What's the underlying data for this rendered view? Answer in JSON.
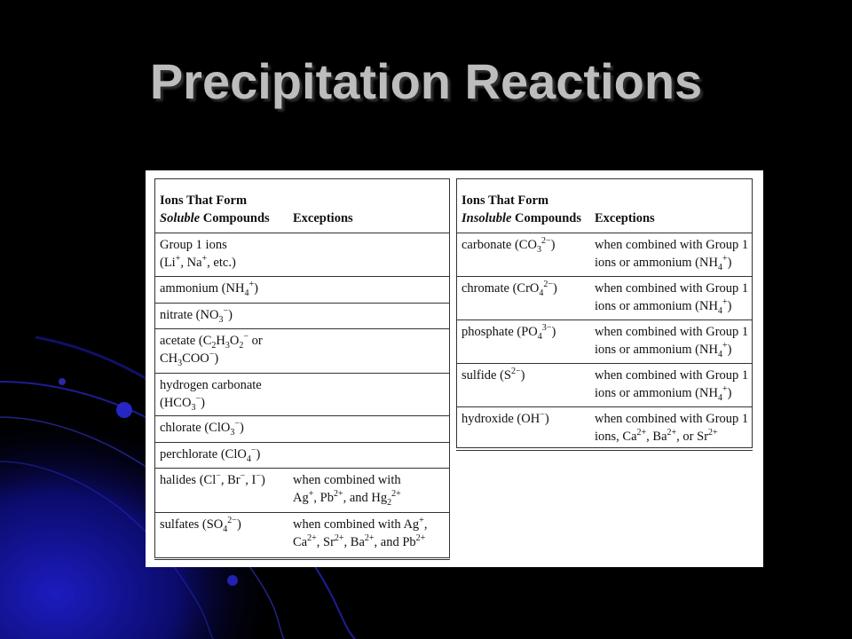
{
  "slide": {
    "title": "Precipitation Reactions"
  },
  "soluble_table": {
    "header": {
      "col1_line1": "Ions That Form",
      "col1_italic": "Soluble",
      "col1_rest": " Compounds",
      "col2": "Exceptions"
    },
    "rows": [
      {
        "ion": "Group 1 ions<br>(Li<sup>+</sup>, Na<sup>+</sup>, etc.)",
        "exception": ""
      },
      {
        "ion": "ammonium (NH<sub>4</sub><sup>+</sup>)",
        "exception": ""
      },
      {
        "ion": "nitrate (NO<sub>3</sub><sup>−</sup>)",
        "exception": ""
      },
      {
        "ion": "acetate (C<sub>2</sub>H<sub>3</sub>O<sub>2</sub><sup>−</sup> or<br>CH<sub>3</sub>COO<sup>−</sup>)",
        "exception": ""
      },
      {
        "ion": "hydrogen carbonate<br>(HCO<sub>3</sub><sup>−</sup>)",
        "exception": ""
      },
      {
        "ion": "chlorate (ClO<sub>3</sub><sup>−</sup>)",
        "exception": ""
      },
      {
        "ion": "perchlorate (ClO<sub>4</sub><sup>−</sup>)",
        "exception": ""
      },
      {
        "ion": "halides (Cl<sup>−</sup>, Br<sup>−</sup>, I<sup>−</sup>)",
        "exception": "when combined with<br>Ag<sup>+</sup>, Pb<sup>2+</sup>, and Hg<sub>2</sub><sup>2+</sup>"
      },
      {
        "ion": "sulfates (SO<sub>4</sub><sup>2−</sup>)",
        "exception": "when combined with Ag<sup>+</sup>,<br>Ca<sup>2+</sup>, Sr<sup>2+</sup>, Ba<sup>2+</sup>, and Pb<sup>2+</sup>"
      }
    ]
  },
  "insoluble_table": {
    "header": {
      "col1_line1": "Ions That Form",
      "col1_italic": "Insoluble",
      "col1_rest": " Compounds",
      "col2": "Exceptions"
    },
    "rows": [
      {
        "ion": "carbonate (CO<sub>3</sub><sup>2−</sup>)",
        "exception": "when combined with Group 1<br>ions or ammonium (NH<sub>4</sub><sup>+</sup>)"
      },
      {
        "ion": "chromate (CrO<sub>4</sub><sup>2−</sup>)",
        "exception": "when combined with Group 1<br>ions or ammonium (NH<sub>4</sub><sup>+</sup>)"
      },
      {
        "ion": "phosphate (PO<sub>4</sub><sup>3−</sup>)",
        "exception": "when combined with Group 1<br>ions or ammonium (NH<sub>4</sub><sup>+</sup>)"
      },
      {
        "ion": "sulfide (S<sup>2−</sup>)",
        "exception": "when combined with Group 1<br>ions or ammonium (NH<sub>4</sub><sup>+</sup>)"
      },
      {
        "ion": "hydroxide (OH<sup>−</sup>)",
        "exception": "when combined with Group 1<br>ions, Ca<sup>2+</sup>, Ba<sup>2+</sup>, or Sr<sup>2+</sup>"
      }
    ]
  },
  "colors": {
    "background": "#000000",
    "title": "#bdbdbd",
    "accent_blue": "#1a1aa8"
  }
}
